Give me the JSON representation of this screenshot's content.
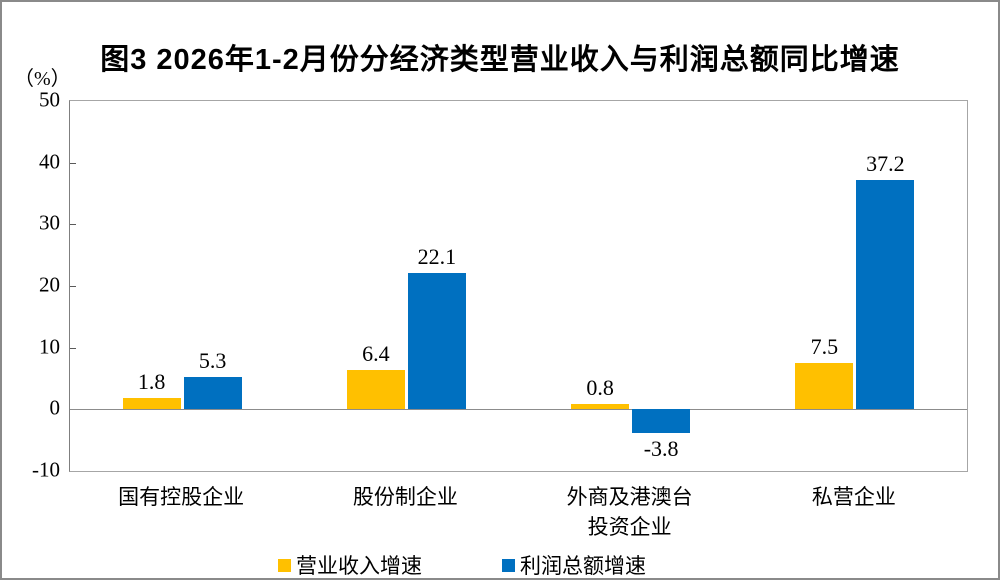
{
  "chart_data": {
    "type": "bar",
    "title": "图3 2026年1-2月份分经济类型营业收入与利润总额同比增速",
    "ylabel": "（%）",
    "xlabel": "",
    "categories": [
      "国有控股企业",
      "股份制企业",
      "外商及港澳台\n投资企业",
      "私营企业"
    ],
    "series": [
      {
        "name": "营业收入增速",
        "color": "#FFC000",
        "values": [
          1.8,
          6.4,
          0.8,
          7.5
        ]
      },
      {
        "name": "利润总额增速",
        "color": "#0070C0",
        "values": [
          5.3,
          22.1,
          -3.8,
          37.2
        ]
      }
    ],
    "data_labels": [
      {
        "series": "营业收入增速",
        "labels": [
          "1.8",
          "6.4",
          "0.8",
          "7.5"
        ]
      },
      {
        "series": "利润总额增速",
        "labels": [
          "5.3",
          "22.1",
          "-3.8",
          "37.2"
        ]
      }
    ],
    "ylim": [
      -10,
      50
    ],
    "yticks": [
      50,
      40,
      30,
      20,
      10,
      0,
      -10
    ],
    "grid": false,
    "legend_position": "bottom"
  },
  "colors": {
    "bar_revenue": "#FFC000",
    "bar_profit": "#0070C0",
    "axis_line": "#7f7f7f",
    "plot_border": "#a6a6a6",
    "text": "#000000"
  }
}
